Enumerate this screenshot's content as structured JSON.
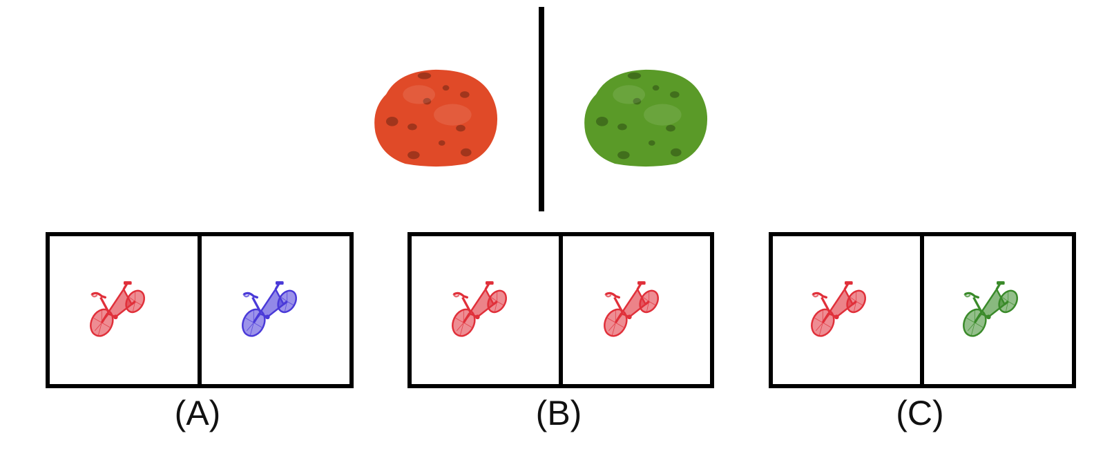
{
  "top_pair": {
    "left": {
      "object": "cookie-icon",
      "color": "#e04a28"
    },
    "right": {
      "object": "cookie-icon",
      "color": "#5a9a28"
    }
  },
  "options": [
    {
      "label": "(A)",
      "left_bike": {
        "color": "#e0303a",
        "object": "bicycle-icon"
      },
      "right_bike": {
        "color": "#4a3ad8",
        "object": "bicycle-icon"
      }
    },
    {
      "label": "(B)",
      "left_bike": {
        "color": "#e0303a",
        "object": "bicycle-icon"
      },
      "right_bike": {
        "color": "#e0303a",
        "object": "bicycle-icon"
      }
    },
    {
      "label": "(C)",
      "left_bike": {
        "color": "#e0303a",
        "object": "bicycle-icon"
      },
      "right_bike": {
        "color": "#3a8a2a",
        "object": "bicycle-icon"
      }
    }
  ]
}
